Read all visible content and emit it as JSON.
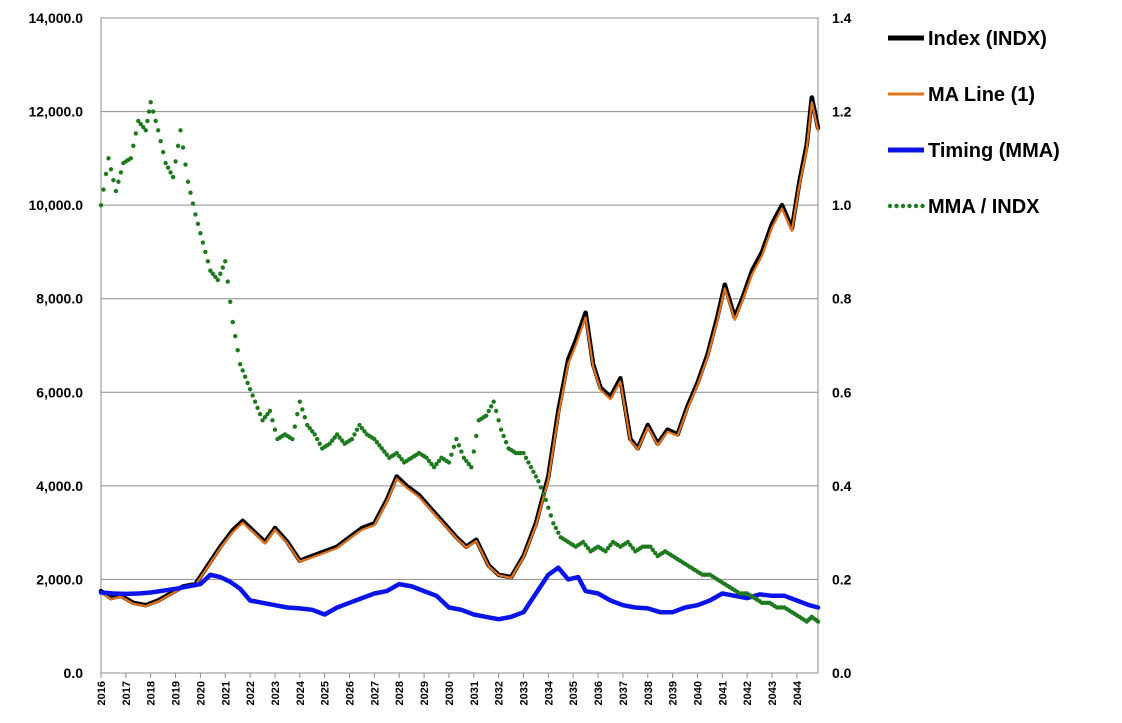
{
  "chart_data": {
    "type": "line",
    "xlabel": "",
    "ylabel": "",
    "y2label": "",
    "ylim": [
      0,
      14000
    ],
    "y2lim": [
      0,
      1.4
    ],
    "y_ticks": [
      "0.0",
      "2,000.0",
      "4,000.0",
      "6,000.0",
      "8,000.0",
      "10,000.0",
      "12,000.0",
      "14,000.0"
    ],
    "y2_ticks": [
      "0.0",
      "0.2",
      "0.4",
      "0.6",
      "0.8",
      "1.0",
      "1.2",
      "1.4"
    ],
    "x_ticks": [
      "2016",
      "2017",
      "2018",
      "2019",
      "2020",
      "2021",
      "2022",
      "2023",
      "2024",
      "2025",
      "2026",
      "2027",
      "2028",
      "2029",
      "2030",
      "2031",
      "2032",
      "2033",
      "2034",
      "2035",
      "2036",
      "2037",
      "2038",
      "2039",
      "2040",
      "2041",
      "2042",
      "2043",
      "2044"
    ],
    "xlim": [
      2016.0,
      2044.85
    ],
    "grid": "horizontal",
    "legend_position": "right",
    "series": [
      {
        "name": "Index (INDX)",
        "axis": "left",
        "color": "#000000",
        "style": "solid",
        "x": [
          2016.0,
          2016.4,
          2016.8,
          2017.3,
          2017.8,
          2018.3,
          2018.8,
          2019.3,
          2019.8,
          2020.3,
          2020.8,
          2021.3,
          2021.7,
          2022.2,
          2022.6,
          2023.0,
          2023.5,
          2024.0,
          2024.5,
          2025.0,
          2025.5,
          2026.0,
          2026.5,
          2027.0,
          2027.5,
          2027.9,
          2028.3,
          2028.8,
          2029.3,
          2029.8,
          2030.3,
          2030.7,
          2031.1,
          2031.6,
          2032.0,
          2032.5,
          2033.0,
          2033.5,
          2034.0,
          2034.4,
          2034.8,
          2035.1,
          2035.5,
          2035.8,
          2036.1,
          2036.5,
          2036.9,
          2037.3,
          2037.6,
          2038.0,
          2038.4,
          2038.8,
          2039.2,
          2039.6,
          2040.0,
          2040.4,
          2040.8,
          2041.1,
          2041.5,
          2041.8,
          2042.2,
          2042.6,
          2043.0,
          2043.4,
          2043.8,
          2044.1,
          2044.4,
          2044.6,
          2044.85
        ],
        "y": [
          1750,
          1600,
          1650,
          1500,
          1450,
          1550,
          1700,
          1850,
          1900,
          2300,
          2700,
          3050,
          3250,
          3000,
          2800,
          3100,
          2800,
          2400,
          2500,
          2600,
          2700,
          2900,
          3100,
          3200,
          3700,
          4200,
          4000,
          3800,
          3500,
          3200,
          2900,
          2700,
          2850,
          2300,
          2100,
          2050,
          2500,
          3200,
          4200,
          5600,
          6700,
          7100,
          7700,
          6600,
          6100,
          5900,
          6300,
          5000,
          4800,
          5300,
          4900,
          5200,
          5100,
          5700,
          6200,
          6800,
          7600,
          8300,
          7600,
          8000,
          8600,
          9000,
          9600,
          10000,
          9500,
          10500,
          11300,
          12300,
          11650
        ]
      },
      {
        "name": "MA Line (1)",
        "axis": "left",
        "color": "#e2731d",
        "style": "solid",
        "x": [
          2016.0,
          2016.4,
          2016.8,
          2017.3,
          2017.8,
          2018.3,
          2018.8,
          2019.3,
          2019.8,
          2020.3,
          2020.8,
          2021.3,
          2021.7,
          2022.2,
          2022.6,
          2023.0,
          2023.5,
          2024.0,
          2024.5,
          2025.0,
          2025.5,
          2026.0,
          2026.5,
          2027.0,
          2027.5,
          2027.9,
          2028.3,
          2028.8,
          2029.3,
          2029.8,
          2030.3,
          2030.7,
          2031.1,
          2031.6,
          2032.0,
          2032.5,
          2033.0,
          2033.5,
          2034.0,
          2034.4,
          2034.8,
          2035.1,
          2035.5,
          2035.8,
          2036.1,
          2036.5,
          2036.9,
          2037.3,
          2037.6,
          2038.0,
          2038.4,
          2038.8,
          2039.2,
          2039.6,
          2040.0,
          2040.4,
          2040.8,
          2041.1,
          2041.5,
          2041.8,
          2042.2,
          2042.6,
          2043.0,
          2043.4,
          2043.8,
          2044.1,
          2044.4,
          2044.6,
          2044.85
        ],
        "y": [
          1720,
          1580,
          1630,
          1480,
          1430,
          1530,
          1680,
          1830,
          1880,
          2270,
          2670,
          3010,
          3210,
          2970,
          2770,
          3060,
          2770,
          2380,
          2470,
          2570,
          2670,
          2870,
          3060,
          3160,
          3660,
          4150,
          3960,
          3760,
          3470,
          3170,
          2880,
          2680,
          2820,
          2280,
          2090,
          2030,
          2470,
          3150,
          4130,
          5500,
          6600,
          7000,
          7600,
          6550,
          6050,
          5850,
          6230,
          4960,
          4780,
          5250,
          4870,
          5160,
          5070,
          5650,
          6150,
          6740,
          7520,
          8220,
          7550,
          7940,
          8520,
          8920,
          9520,
          9930,
          9450,
          10420,
          11200,
          12200,
          11600
        ]
      },
      {
        "name": "Timing (MMA)",
        "axis": "left",
        "color": "#0a14e6",
        "style": "solid",
        "x": [
          2016.0,
          2016.5,
          2017.0,
          2017.5,
          2018.0,
          2018.5,
          2019.0,
          2019.5,
          2020.0,
          2020.4,
          2020.8,
          2021.2,
          2021.6,
          2022.0,
          2022.5,
          2023.0,
          2023.5,
          2024.0,
          2024.5,
          2025.0,
          2025.5,
          2026.0,
          2026.5,
          2027.0,
          2027.5,
          2028.0,
          2028.5,
          2029.0,
          2029.5,
          2030.0,
          2030.5,
          2031.0,
          2031.5,
          2032.0,
          2032.5,
          2033.0,
          2033.5,
          2034.0,
          2034.4,
          2034.8,
          2035.2,
          2035.5,
          2036.0,
          2036.5,
          2037.0,
          2037.5,
          2038.0,
          2038.5,
          2039.0,
          2039.5,
          2040.0,
          2040.5,
          2041.0,
          2041.5,
          2042.0,
          2042.5,
          2043.0,
          2043.5,
          2044.0,
          2044.5,
          2044.85
        ],
        "y": [
          1720,
          1700,
          1690,
          1700,
          1720,
          1760,
          1800,
          1850,
          1900,
          2100,
          2050,
          1950,
          1800,
          1550,
          1500,
          1450,
          1400,
          1380,
          1350,
          1250,
          1400,
          1500,
          1600,
          1700,
          1750,
          1900,
          1850,
          1750,
          1650,
          1400,
          1350,
          1250,
          1200,
          1150,
          1200,
          1300,
          1700,
          2100,
          2250,
          2000,
          2050,
          1750,
          1700,
          1550,
          1450,
          1400,
          1380,
          1300,
          1300,
          1400,
          1450,
          1550,
          1700,
          1650,
          1600,
          1680,
          1650,
          1650,
          1550,
          1450,
          1400
        ]
      },
      {
        "name": "MMA / INDX",
        "axis": "right",
        "color": "#1e7a1e",
        "style": "dotted",
        "x": [
          2016.0,
          2016.3,
          2016.6,
          2016.9,
          2017.2,
          2017.5,
          2017.8,
          2018.0,
          2018.3,
          2018.6,
          2018.9,
          2019.2,
          2019.5,
          2019.8,
          2020.1,
          2020.4,
          2020.7,
          2021.0,
          2021.3,
          2021.6,
          2021.9,
          2022.2,
          2022.5,
          2022.8,
          2023.1,
          2023.4,
          2023.7,
          2024.0,
          2024.3,
          2024.6,
          2024.9,
          2025.2,
          2025.5,
          2025.8,
          2026.1,
          2026.4,
          2026.7,
          2027.0,
          2027.3,
          2027.6,
          2027.9,
          2028.2,
          2028.5,
          2028.8,
          2029.1,
          2029.4,
          2029.7,
          2030.0,
          2030.3,
          2030.6,
          2030.9,
          2031.2,
          2031.5,
          2031.8,
          2032.1,
          2032.4,
          2032.7,
          2033.0,
          2033.3,
          2033.6,
          2033.9,
          2034.2,
          2034.5,
          2034.8,
          2035.1,
          2035.4,
          2035.7,
          2036.0,
          2036.3,
          2036.6,
          2036.9,
          2037.2,
          2037.5,
          2037.8,
          2038.1,
          2038.4,
          2038.7,
          2039.0,
          2039.3,
          2039.6,
          2039.9,
          2040.2,
          2040.5,
          2040.8,
          2041.1,
          2041.4,
          2041.7,
          2042.0,
          2042.3,
          2042.6,
          2042.9,
          2043.2,
          2043.5,
          2043.8,
          2044.1,
          2044.4,
          2044.6,
          2044.85
        ],
        "y": [
          1.0,
          1.1,
          1.03,
          1.09,
          1.1,
          1.18,
          1.16,
          1.22,
          1.16,
          1.09,
          1.06,
          1.16,
          1.05,
          0.98,
          0.92,
          0.86,
          0.84,
          0.88,
          0.75,
          0.66,
          0.62,
          0.58,
          0.54,
          0.56,
          0.5,
          0.51,
          0.5,
          0.58,
          0.53,
          0.51,
          0.48,
          0.49,
          0.51,
          0.49,
          0.5,
          0.53,
          0.51,
          0.5,
          0.48,
          0.46,
          0.47,
          0.45,
          0.46,
          0.47,
          0.46,
          0.44,
          0.46,
          0.45,
          0.5,
          0.46,
          0.44,
          0.54,
          0.55,
          0.58,
          0.52,
          0.48,
          0.47,
          0.47,
          0.44,
          0.41,
          0.37,
          0.32,
          0.29,
          0.28,
          0.27,
          0.28,
          0.26,
          0.27,
          0.26,
          0.28,
          0.27,
          0.28,
          0.26,
          0.27,
          0.27,
          0.25,
          0.26,
          0.25,
          0.24,
          0.23,
          0.22,
          0.21,
          0.21,
          0.2,
          0.19,
          0.18,
          0.17,
          0.17,
          0.16,
          0.15,
          0.15,
          0.14,
          0.14,
          0.13,
          0.12,
          0.11,
          0.12,
          0.11
        ]
      }
    ]
  },
  "colors": {
    "grid": "#8c8c8c",
    "axis": "#8c8c8c",
    "background": "#ffffff",
    "plot_border": "#8c8c8c"
  }
}
